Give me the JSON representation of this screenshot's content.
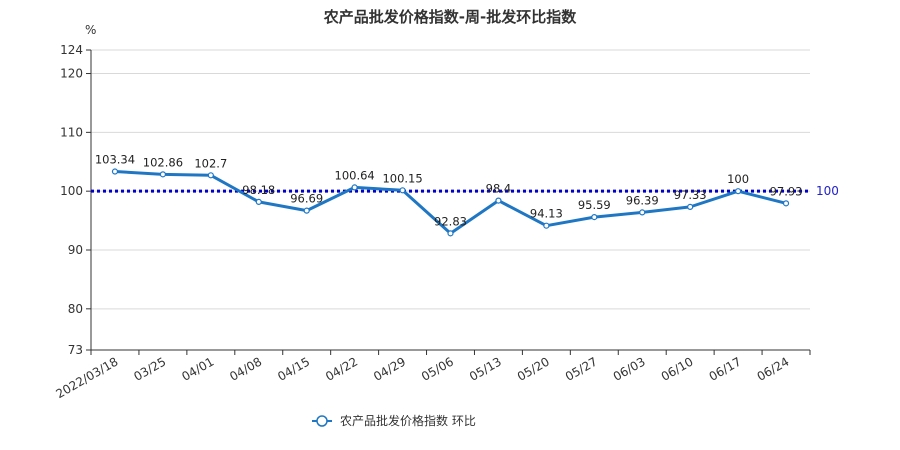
{
  "chart_data": {
    "type": "line",
    "title": "农产品批发价格指数-周-批发环比指数",
    "y_unit_label": "%",
    "ylim": [
      73,
      124
    ],
    "y_ticks": [
      73,
      80,
      90,
      100,
      110,
      120,
      124
    ],
    "grid": "horizontal",
    "categories": [
      "2022/03/18",
      "03/25",
      "04/01",
      "04/08",
      "04/15",
      "04/22",
      "04/29",
      "05/06",
      "05/13",
      "05/20",
      "05/27",
      "06/03",
      "06/10",
      "06/17",
      "06/24"
    ],
    "series": [
      {
        "name": "农产品批发价格指数  环比",
        "values": [
          103.34,
          102.86,
          102.7,
          98.18,
          96.69,
          100.64,
          100.15,
          92.83,
          98.4,
          94.13,
          95.59,
          96.39,
          97.33,
          100,
          97.93
        ],
        "color": "#1f77c4"
      }
    ],
    "reference_line": {
      "value": 100,
      "label": "100",
      "color": "#0000cc",
      "style": "dotted"
    },
    "legend": {
      "position": "bottom-center"
    }
  }
}
